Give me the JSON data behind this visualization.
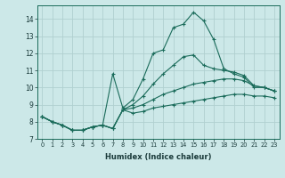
{
  "xlabel": "Humidex (Indice chaleur)",
  "bg_color": "#cce8e8",
  "grid_color": "#b0d0d0",
  "line_color": "#1a6b5a",
  "xlim": [
    -0.5,
    23.5
  ],
  "ylim": [
    7.0,
    14.8
  ],
  "yticks": [
    7,
    8,
    9,
    10,
    11,
    12,
    13,
    14
  ],
  "xticks": [
    0,
    1,
    2,
    3,
    4,
    5,
    6,
    7,
    8,
    9,
    10,
    11,
    12,
    13,
    14,
    15,
    16,
    17,
    18,
    19,
    20,
    21,
    22,
    23
  ],
  "series": [
    [
      8.3,
      8.0,
      7.8,
      7.5,
      7.5,
      7.7,
      7.8,
      10.8,
      8.8,
      9.3,
      10.5,
      12.0,
      12.2,
      13.5,
      13.7,
      14.4,
      13.9,
      12.8,
      11.1,
      10.8,
      10.6,
      10.0,
      10.0,
      9.8
    ],
    [
      8.3,
      8.0,
      7.8,
      7.5,
      7.5,
      7.7,
      7.8,
      7.6,
      8.7,
      9.0,
      9.5,
      10.2,
      10.8,
      11.3,
      11.8,
      11.9,
      11.3,
      11.1,
      11.0,
      10.9,
      10.7,
      10.1,
      10.0,
      9.8
    ],
    [
      8.3,
      8.0,
      7.8,
      7.5,
      7.5,
      7.7,
      7.8,
      7.6,
      8.7,
      8.8,
      9.0,
      9.3,
      9.6,
      9.8,
      10.0,
      10.2,
      10.3,
      10.4,
      10.5,
      10.5,
      10.4,
      10.1,
      10.0,
      9.8
    ],
    [
      8.3,
      8.0,
      7.8,
      7.5,
      7.5,
      7.7,
      7.8,
      7.6,
      8.7,
      8.5,
      8.6,
      8.8,
      8.9,
      9.0,
      9.1,
      9.2,
      9.3,
      9.4,
      9.5,
      9.6,
      9.6,
      9.5,
      9.5,
      9.4
    ]
  ]
}
